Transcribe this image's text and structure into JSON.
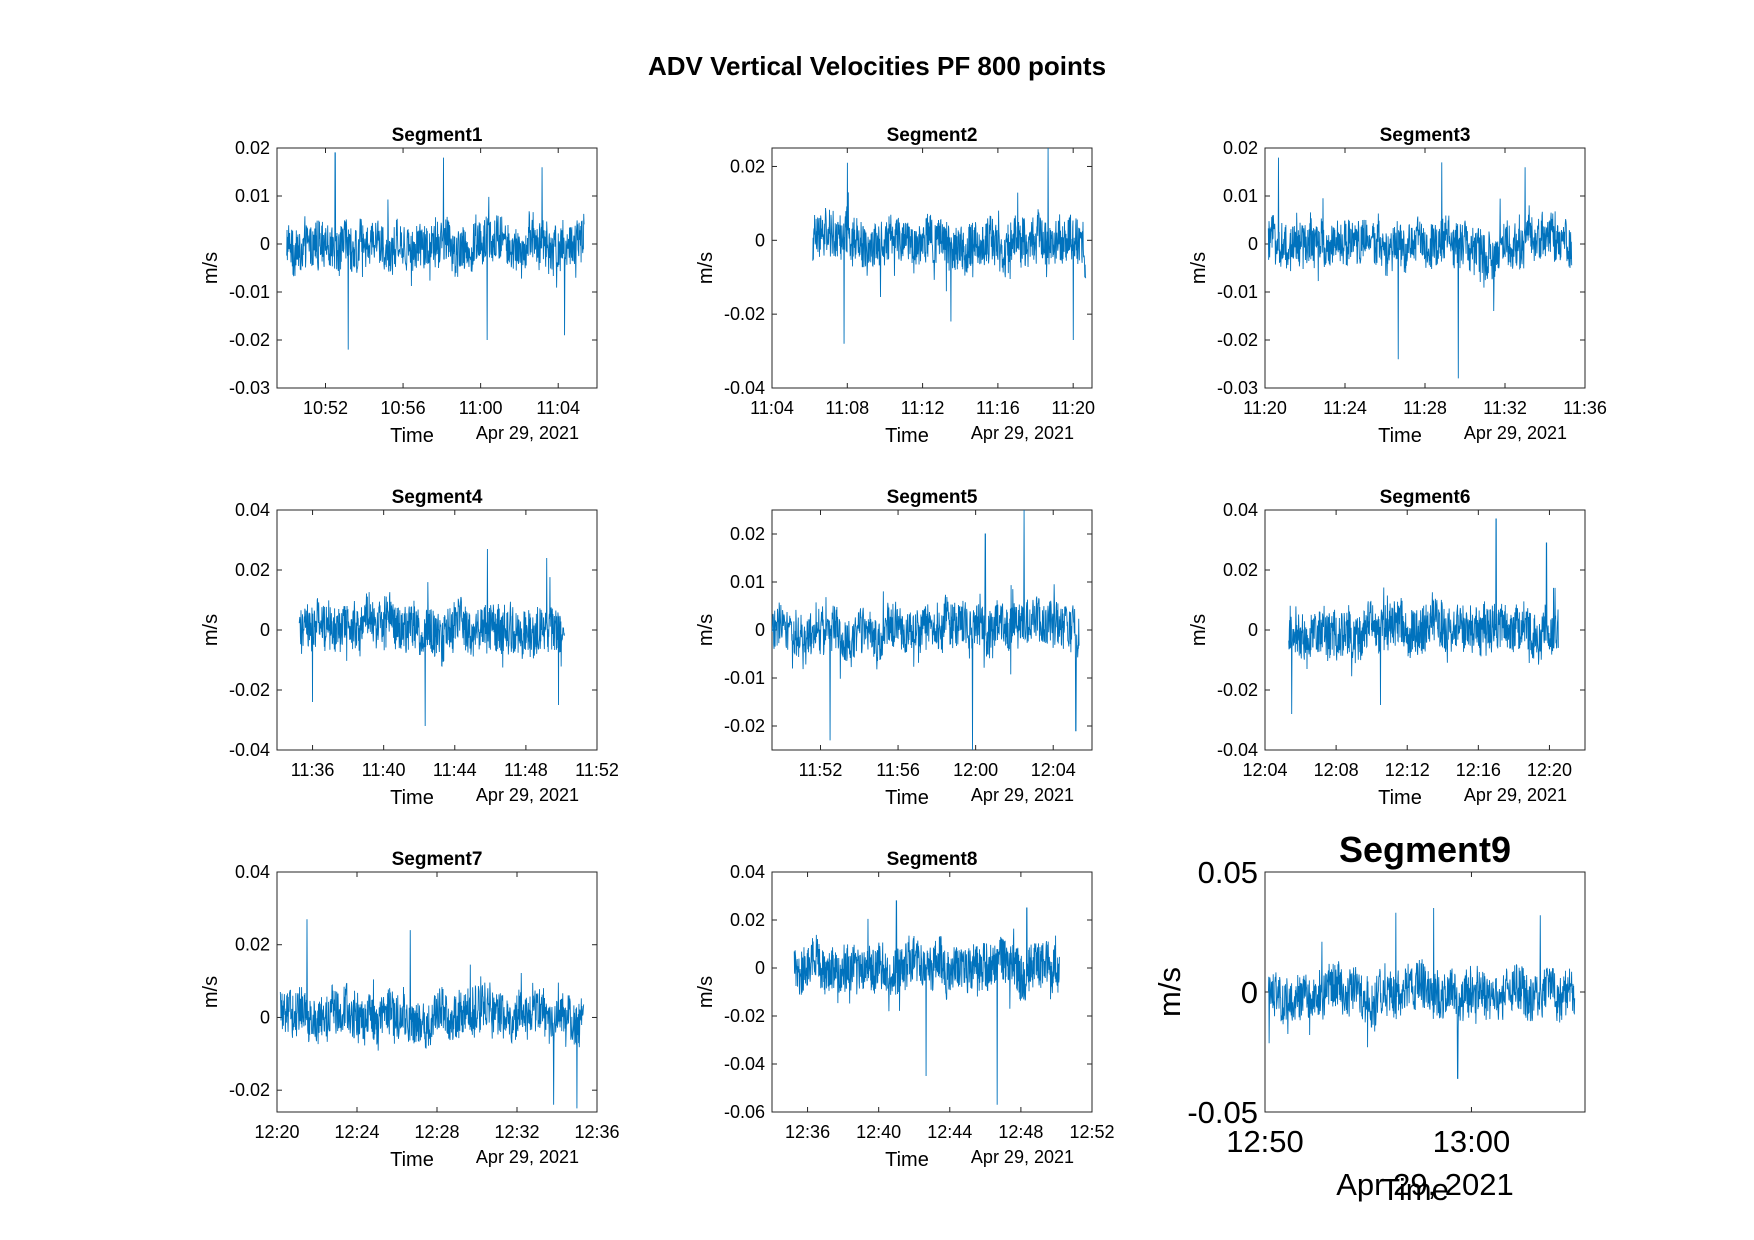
{
  "chart_data": {
    "type": "line",
    "title": "ADV Vertical Velocities PF 800 points",
    "series_color": "#0072BD",
    "panels": [
      {
        "title": "Segment1",
        "ylabel": "m/s",
        "xlabel": "Time",
        "date_label": "Apr 29, 2021",
        "ylim": [
          -0.03,
          0.02
        ],
        "yticks": [
          -0.03,
          -0.02,
          -0.01,
          0,
          0.01,
          0.02
        ],
        "ytick_labels": [
          "-0.03",
          "-0.02",
          "-0.01",
          "0",
          "0.01",
          "0.02"
        ],
        "xlim": [
          "10:49:30",
          "11:06:00"
        ],
        "xticks": [
          "10:52",
          "10:56",
          "11:00",
          "11:04"
        ],
        "data_start": "10:50:00",
        "data_end": "11:05:20",
        "spikes": [
          {
            "t": "10:52:30",
            "v": 0.019
          },
          {
            "t": "10:53:10",
            "v": -0.022
          },
          {
            "t": "10:58:05",
            "v": 0.018
          },
          {
            "t": "11:00:20",
            "v": -0.02
          },
          {
            "t": "11:03:10",
            "v": 0.016
          },
          {
            "t": "11:04:20",
            "v": -0.019
          }
        ]
      },
      {
        "title": "Segment2",
        "ylabel": "m/s",
        "xlabel": "Time",
        "date_label": "Apr 29, 2021",
        "ylim": [
          -0.04,
          0.025
        ],
        "yticks": [
          -0.04,
          -0.02,
          0,
          0.02
        ],
        "ytick_labels": [
          "-0.04",
          "-0.02",
          "0",
          "0.02"
        ],
        "xlim": [
          "11:04:00",
          "11:21:00"
        ],
        "xticks": [
          "11:04",
          "11:08",
          "11:12",
          "11:16",
          "11:20"
        ],
        "data_start": "11:06:10",
        "data_end": "11:20:40",
        "spikes": [
          {
            "t": "11:07:50",
            "v": -0.028
          },
          {
            "t": "11:08:00",
            "v": 0.021
          },
          {
            "t": "11:13:30",
            "v": -0.022
          },
          {
            "t": "11:18:40",
            "v": 0.025
          },
          {
            "t": "11:20:00",
            "v": -0.027
          }
        ]
      },
      {
        "title": "Segment3",
        "ylabel": "m/s",
        "xlabel": "Time",
        "date_label": "Apr 29, 2021",
        "ylim": [
          -0.03,
          0.02
        ],
        "yticks": [
          -0.03,
          -0.02,
          -0.01,
          0,
          0.01,
          0.02
        ],
        "ytick_labels": [
          "-0.03",
          "-0.02",
          "-0.01",
          "0",
          "0.01",
          "0.02"
        ],
        "xlim": [
          "11:20:00",
          "11:36:00"
        ],
        "xticks": [
          "11:20",
          "11:24",
          "11:28",
          "11:32",
          "11:36"
        ],
        "data_start": "11:20:10",
        "data_end": "11:35:20",
        "spikes": [
          {
            "t": "11:20:40",
            "v": 0.018
          },
          {
            "t": "11:26:40",
            "v": -0.024
          },
          {
            "t": "11:28:50",
            "v": 0.017
          },
          {
            "t": "11:29:40",
            "v": -0.028
          },
          {
            "t": "11:33:00",
            "v": 0.016
          }
        ]
      },
      {
        "title": "Segment4",
        "ylabel": "m/s",
        "xlabel": "Time",
        "date_label": "Apr 29, 2021",
        "ylim": [
          -0.04,
          0.04
        ],
        "yticks": [
          -0.04,
          -0.02,
          0,
          0.02,
          0.04
        ],
        "ytick_labels": [
          "-0.04",
          "-0.02",
          "0",
          "0.02",
          "0.04"
        ],
        "xlim": [
          "11:34:00",
          "11:52:00"
        ],
        "xticks": [
          "11:36",
          "11:40",
          "11:44",
          "11:48",
          "11:52"
        ],
        "data_start": "11:35:15",
        "data_end": "11:50:10",
        "spikes": [
          {
            "t": "11:36:00",
            "v": -0.024
          },
          {
            "t": "11:42:20",
            "v": -0.032
          },
          {
            "t": "11:45:50",
            "v": 0.027
          },
          {
            "t": "11:49:10",
            "v": 0.024
          },
          {
            "t": "11:49:50",
            "v": -0.025
          }
        ]
      },
      {
        "title": "Segment5",
        "ylabel": "m/s",
        "xlabel": "Time",
        "date_label": "Apr 29, 2021",
        "ylim": [
          -0.025,
          0.025
        ],
        "yticks": [
          -0.02,
          -0.01,
          0,
          0.01,
          0.02
        ],
        "ytick_labels": [
          "-0.02",
          "-0.01",
          "0",
          "0.01",
          "0.02"
        ],
        "xlim": [
          "11:49:30",
          "12:06:00"
        ],
        "xticks": [
          "11:52",
          "11:56",
          "12:00",
          "12:04"
        ],
        "data_start": "11:49:30",
        "data_end": "12:05:20",
        "spikes": [
          {
            "t": "11:52:30",
            "v": -0.023
          },
          {
            "t": "11:59:50",
            "v": -0.025
          },
          {
            "t": "12:00:30",
            "v": 0.02
          },
          {
            "t": "12:02:30",
            "v": 0.025
          },
          {
            "t": "12:05:10",
            "v": -0.021
          }
        ]
      },
      {
        "title": "Segment6",
        "ylabel": "m/s",
        "xlabel": "Time",
        "date_label": "Apr 29, 2021",
        "ylim": [
          -0.04,
          0.04
        ],
        "yticks": [
          -0.04,
          -0.02,
          0,
          0.02,
          0.04
        ],
        "ytick_labels": [
          "-0.04",
          "-0.02",
          "0",
          "0.02",
          "0.04"
        ],
        "xlim": [
          "12:04:00",
          "12:22:00"
        ],
        "xticks": [
          "12:04",
          "12:08",
          "12:12",
          "12:16",
          "12:20"
        ],
        "data_start": "12:05:20",
        "data_end": "12:20:30",
        "spikes": [
          {
            "t": "12:05:30",
            "v": -0.028
          },
          {
            "t": "12:10:30",
            "v": -0.025
          },
          {
            "t": "12:17:00",
            "v": 0.037
          },
          {
            "t": "12:19:50",
            "v": 0.029
          }
        ]
      },
      {
        "title": "Segment7",
        "ylabel": "m/s",
        "xlabel": "Time",
        "date_label": "Apr 29, 2021",
        "ylim": [
          -0.026,
          0.04
        ],
        "yticks": [
          -0.02,
          0,
          0.02,
          0.04
        ],
        "ytick_labels": [
          "-0.02",
          "0",
          "0.02",
          "0.04"
        ],
        "xlim": [
          "12:20:00",
          "12:36:00"
        ],
        "xticks": [
          "12:20",
          "12:24",
          "12:28",
          "12:32",
          "12:36"
        ],
        "data_start": "12:20:10",
        "data_end": "12:35:20",
        "spikes": [
          {
            "t": "12:21:30",
            "v": 0.027
          },
          {
            "t": "12:26:40",
            "v": 0.024
          },
          {
            "t": "12:33:50",
            "v": -0.024
          },
          {
            "t": "12:35:00",
            "v": -0.025
          }
        ]
      },
      {
        "title": "Segment8",
        "ylabel": "m/s",
        "xlabel": "Time",
        "date_label": "Apr 29, 2021",
        "ylim": [
          -0.06,
          0.04
        ],
        "yticks": [
          -0.06,
          -0.04,
          -0.02,
          0,
          0.02,
          0.04
        ],
        "ytick_labels": [
          "-0.06",
          "-0.04",
          "-0.02",
          "0",
          "0.02",
          "0.04"
        ],
        "xlim": [
          "12:34:00",
          "12:52:00"
        ],
        "xticks": [
          "12:36",
          "12:40",
          "12:44",
          "12:48",
          "12:52"
        ],
        "data_start": "12:35:15",
        "data_end": "12:50:10",
        "spikes": [
          {
            "t": "12:41:00",
            "v": 0.028
          },
          {
            "t": "12:42:40",
            "v": -0.045
          },
          {
            "t": "12:46:40",
            "v": -0.057
          },
          {
            "t": "12:48:20",
            "v": 0.025
          }
        ]
      },
      {
        "title": "Segment9",
        "ylabel": "m/s",
        "xlabel": "Time",
        "date_label": "Apr 29, 2021",
        "ylim": [
          -0.05,
          0.05
        ],
        "yticks": [
          -0.05,
          0,
          0.05
        ],
        "ytick_labels": [
          "-0.05",
          "0",
          "0.05"
        ],
        "xlim": [
          "12:50:00",
          "13:05:30"
        ],
        "xticks": [
          "12:50",
          "13:00"
        ],
        "data_start": "12:50:10",
        "data_end": "13:05:00",
        "spikes": [
          {
            "t": "12:56:20",
            "v": 0.033
          },
          {
            "t": "12:59:20",
            "v": -0.036
          },
          {
            "t": "12:58:10",
            "v": 0.035
          },
          {
            "t": "13:03:20",
            "v": 0.032
          }
        ]
      }
    ]
  }
}
